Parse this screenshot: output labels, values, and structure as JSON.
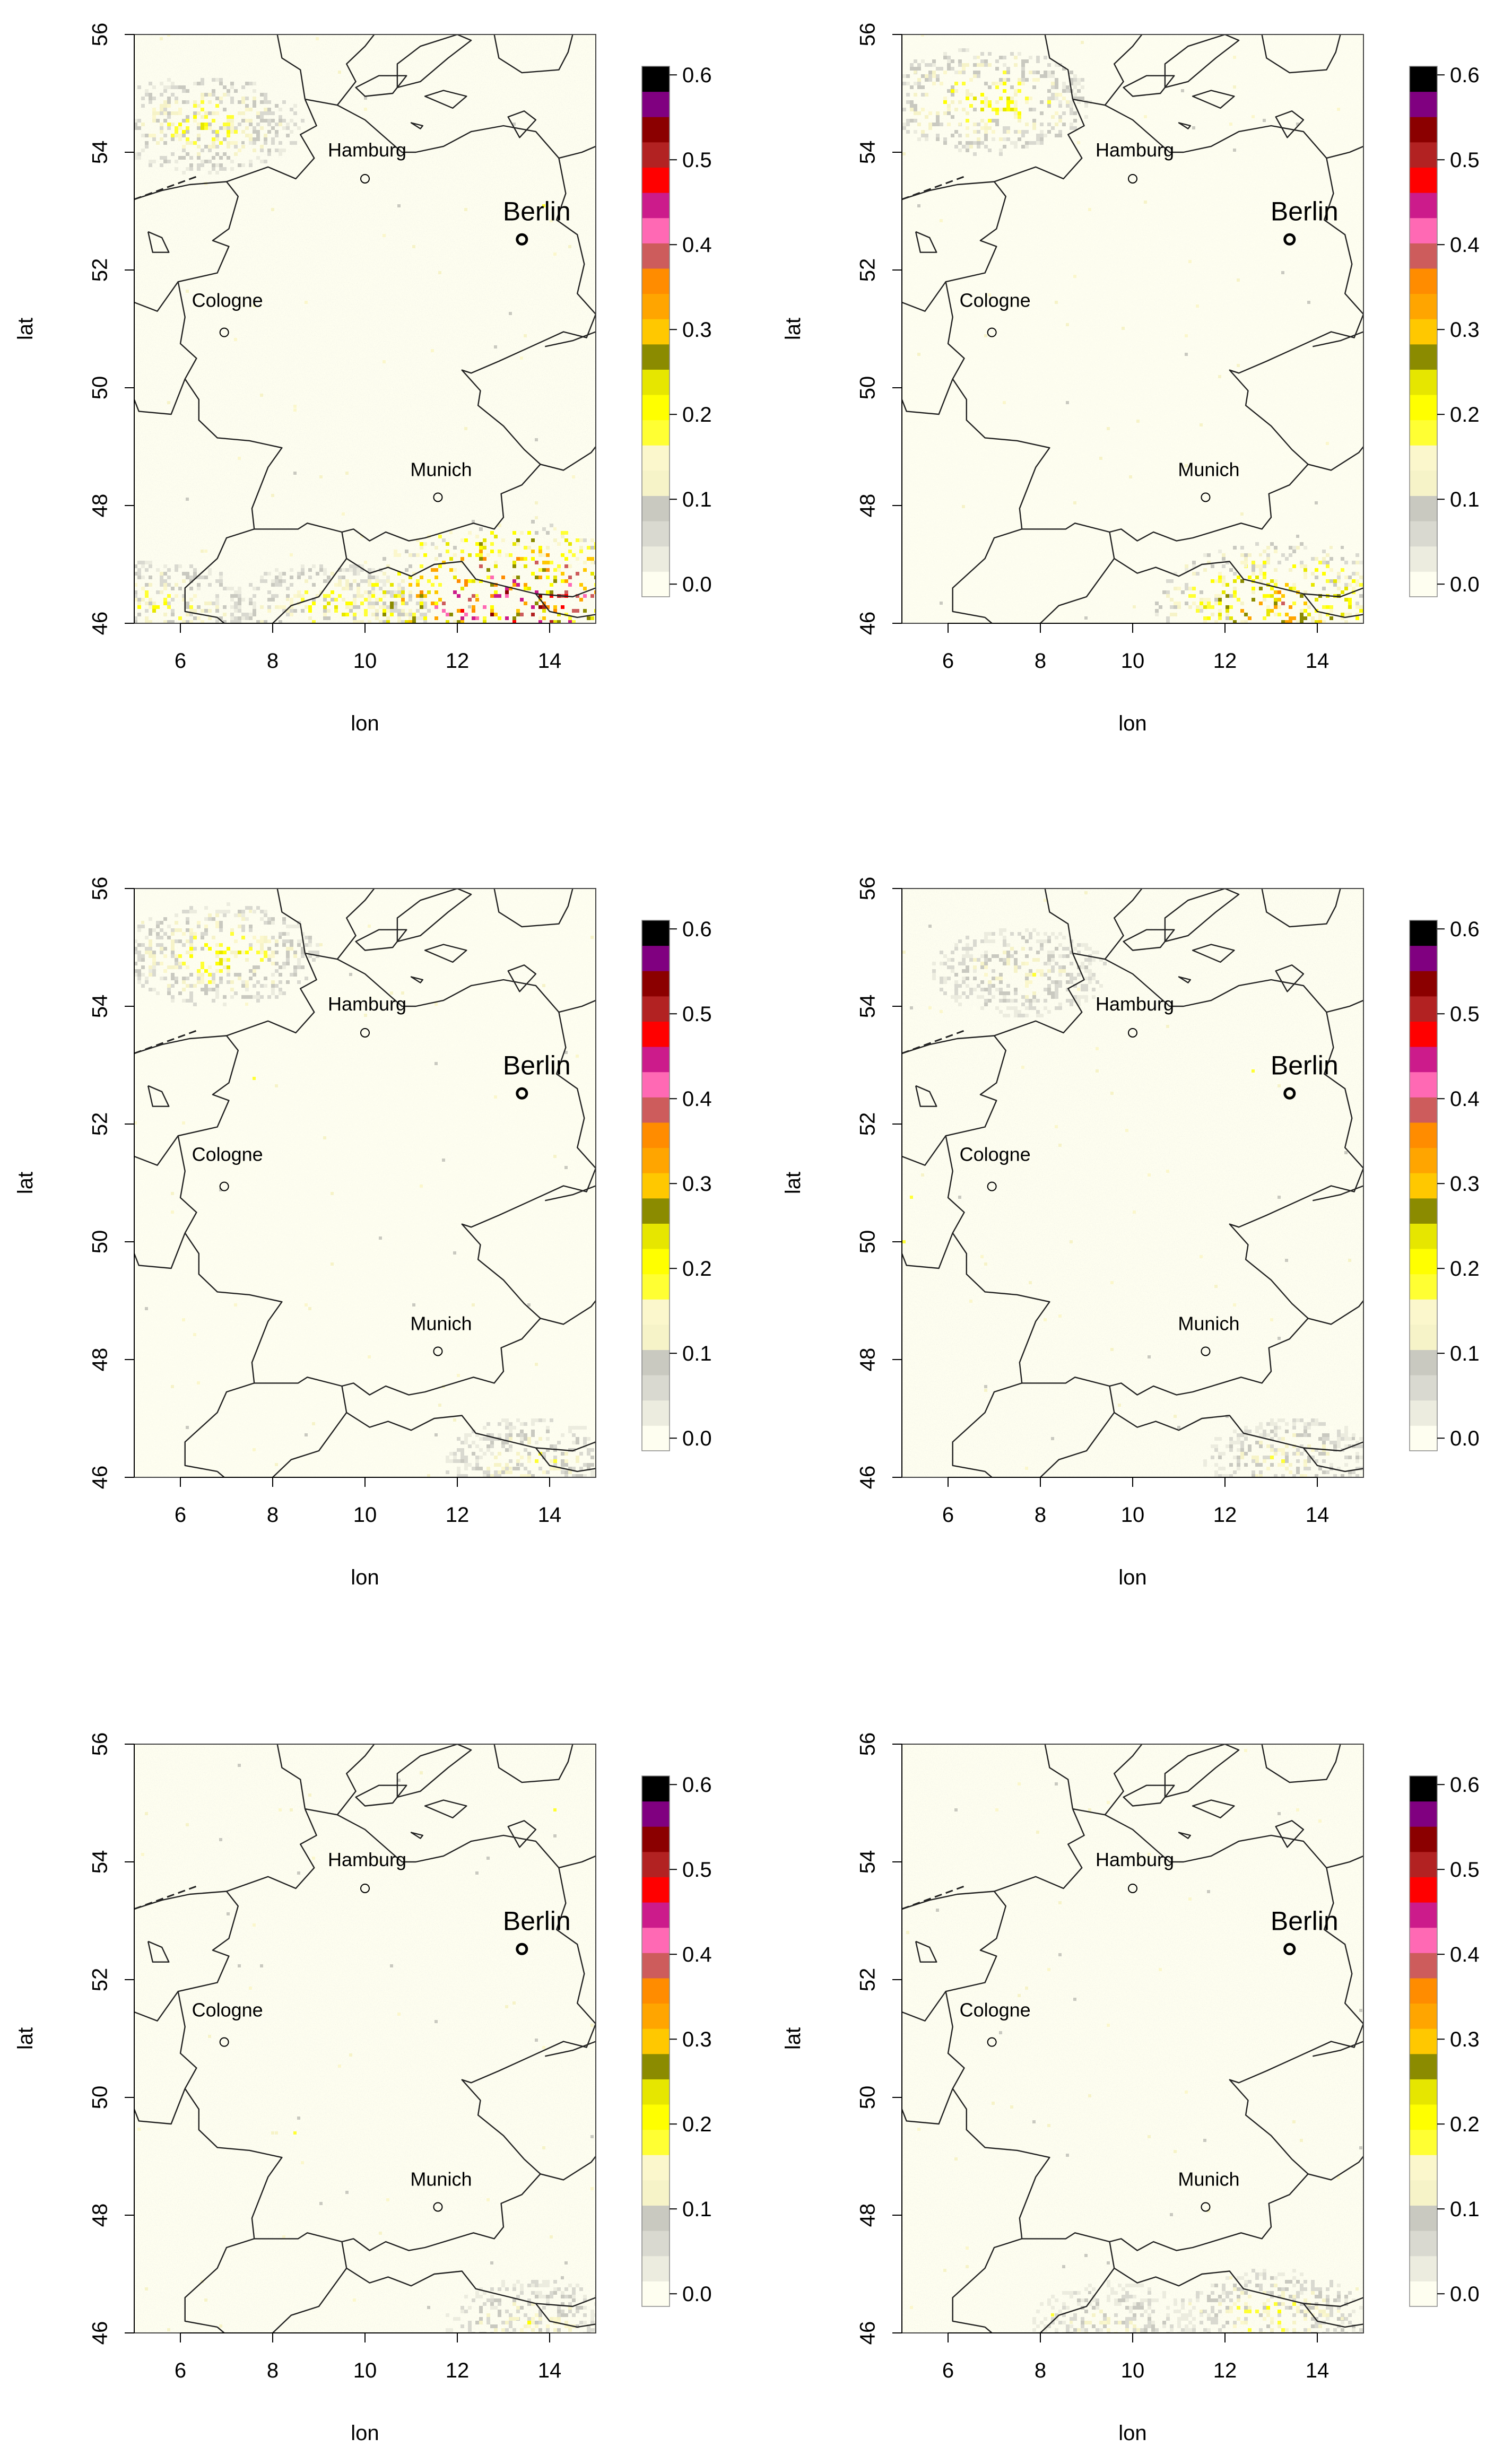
{
  "figure": {
    "panel_count": 6,
    "layout": "3 rows x 2 columns"
  },
  "chart_data": [
    {
      "type": "heatmap",
      "panel": 1,
      "xlabel": "lon",
      "ylabel": "lat",
      "xlim": [
        5,
        15
      ],
      "ylim": [
        46,
        56
      ],
      "xticks": [
        "6",
        "8",
        "10",
        "12",
        "14"
      ],
      "yticks": [
        "46",
        "48",
        "50",
        "52",
        "54",
        "56"
      ],
      "cities": [
        {
          "name": "Hamburg",
          "lon": 10.0,
          "lat": 53.55,
          "major": false
        },
        {
          "name": "Berlin",
          "lon": 13.4,
          "lat": 52.52,
          "major": true
        },
        {
          "name": "Cologne",
          "lon": 6.95,
          "lat": 50.94,
          "major": false
        },
        {
          "name": "Munich",
          "lon": 11.58,
          "lat": 48.14,
          "major": false
        }
      ],
      "hotspots": [
        {
          "lon": 6.5,
          "lat": 54.5,
          "level": 0.15
        },
        {
          "lon": 5.5,
          "lat": 46.3,
          "level": 0.14
        },
        {
          "lon": 9.2,
          "lat": 46.2,
          "level": 0.16
        },
        {
          "lon": 13.3,
          "lat": 46.3,
          "level": 0.36
        }
      ]
    },
    {
      "type": "heatmap",
      "panel": 2,
      "xlabel": "lon",
      "ylabel": "lat",
      "xlim": [
        5,
        15
      ],
      "ylim": [
        46,
        56
      ],
      "xticks": [
        "6",
        "8",
        "10",
        "12",
        "14"
      ],
      "yticks": [
        "46",
        "48",
        "50",
        "52",
        "54",
        "56"
      ],
      "cities": [
        {
          "name": "Hamburg",
          "lon": 10.0,
          "lat": 53.55,
          "major": false
        },
        {
          "name": "Berlin",
          "lon": 13.4,
          "lat": 52.52,
          "major": true
        },
        {
          "name": "Cologne",
          "lon": 6.95,
          "lat": 50.94,
          "major": false
        },
        {
          "name": "Munich",
          "lon": 11.58,
          "lat": 48.14,
          "major": false
        }
      ],
      "hotspots": [
        {
          "lon": 6.8,
          "lat": 54.9,
          "level": 0.17
        },
        {
          "lon": 13.2,
          "lat": 46.3,
          "level": 0.24
        }
      ]
    },
    {
      "type": "heatmap",
      "panel": 3,
      "xlabel": "lon",
      "ylabel": "lat",
      "xlim": [
        5,
        15
      ],
      "ylim": [
        46,
        56
      ],
      "xticks": [
        "6",
        "8",
        "10",
        "12",
        "14"
      ],
      "yticks": [
        "46",
        "48",
        "50",
        "52",
        "54",
        "56"
      ],
      "cities": [
        {
          "name": "Hamburg",
          "lon": 10.0,
          "lat": 53.55,
          "major": false
        },
        {
          "name": "Berlin",
          "lon": 13.4,
          "lat": 52.52,
          "major": true
        },
        {
          "name": "Cologne",
          "lon": 6.95,
          "lat": 50.94,
          "major": false
        },
        {
          "name": "Munich",
          "lon": 11.58,
          "lat": 48.14,
          "major": false
        }
      ],
      "hotspots": [
        {
          "lon": 6.8,
          "lat": 54.9,
          "level": 0.16
        },
        {
          "lon": 13.6,
          "lat": 46.3,
          "level": 0.12
        }
      ]
    },
    {
      "type": "heatmap",
      "panel": 4,
      "xlabel": "lon",
      "ylabel": "lat",
      "xlim": [
        5,
        15
      ],
      "ylim": [
        46,
        56
      ],
      "xticks": [
        "6",
        "8",
        "10",
        "12",
        "14"
      ],
      "yticks": [
        "46",
        "48",
        "50",
        "52",
        "54",
        "56"
      ],
      "cities": [
        {
          "name": "Hamburg",
          "lon": 10.0,
          "lat": 53.55,
          "major": false
        },
        {
          "name": "Berlin",
          "lon": 13.4,
          "lat": 52.52,
          "major": true
        },
        {
          "name": "Cologne",
          "lon": 6.95,
          "lat": 50.94,
          "major": false
        },
        {
          "name": "Munich",
          "lon": 11.58,
          "lat": 48.14,
          "major": false
        }
      ],
      "hotspots": [
        {
          "lon": 7.5,
          "lat": 54.6,
          "level": 0.12
        },
        {
          "lon": 13.4,
          "lat": 46.3,
          "level": 0.12
        }
      ]
    },
    {
      "type": "heatmap",
      "panel": 5,
      "xlabel": "lon",
      "ylabel": "lat",
      "xlim": [
        5,
        15
      ],
      "ylim": [
        46,
        56
      ],
      "xticks": [
        "6",
        "8",
        "10",
        "12",
        "14"
      ],
      "yticks": [
        "46",
        "48",
        "50",
        "52",
        "54",
        "56"
      ],
      "cities": [
        {
          "name": "Hamburg",
          "lon": 10.0,
          "lat": 53.55,
          "major": false
        },
        {
          "name": "Berlin",
          "lon": 13.4,
          "lat": 52.52,
          "major": true
        },
        {
          "name": "Cologne",
          "lon": 6.95,
          "lat": 50.94,
          "major": false
        },
        {
          "name": "Munich",
          "lon": 11.58,
          "lat": 48.14,
          "major": false
        }
      ],
      "hotspots": [
        {
          "lon": 13.6,
          "lat": 46.2,
          "level": 0.12
        }
      ]
    },
    {
      "type": "heatmap",
      "panel": 6,
      "xlabel": "lon",
      "ylabel": "lat",
      "xlim": [
        5,
        15
      ],
      "ylim": [
        46,
        56
      ],
      "xticks": [
        "6",
        "8",
        "10",
        "12",
        "14"
      ],
      "yticks": [
        "46",
        "48",
        "50",
        "52",
        "54",
        "56"
      ],
      "cities": [
        {
          "name": "Hamburg",
          "lon": 10.0,
          "lat": 53.55,
          "major": false
        },
        {
          "name": "Berlin",
          "lon": 13.4,
          "lat": 52.52,
          "major": true
        },
        {
          "name": "Cologne",
          "lon": 6.95,
          "lat": 50.94,
          "major": false
        },
        {
          "name": "Munich",
          "lon": 11.58,
          "lat": 48.14,
          "major": false
        }
      ],
      "hotspots": [
        {
          "lon": 13.0,
          "lat": 46.3,
          "level": 0.14
        },
        {
          "lon": 9.5,
          "lat": 46.2,
          "level": 0.1
        }
      ]
    }
  ],
  "colorbar": {
    "ticks": [
      "0.0",
      "0.1",
      "0.2",
      "0.3",
      "0.4",
      "0.5",
      "0.6"
    ],
    "range": [
      0,
      0.625
    ],
    "colors": [
      "#fefef0",
      "#ececdf",
      "#d9d9d0",
      "#c9c9c0",
      "#f6f3c8",
      "#fbf7cc",
      "#ffff33",
      "#ffff00",
      "#e6e600",
      "#8b8b00",
      "#ffc800",
      "#ffa500",
      "#ff8c00",
      "#cd5c5c",
      "#ff69b4",
      "#cc1b8b",
      "#ff0000",
      "#b22222",
      "#8b0000",
      "#800080",
      "#000000"
    ]
  },
  "map_style": {
    "background": "#fefef0",
    "noise": "#d4d4c8",
    "border": "#222222"
  }
}
